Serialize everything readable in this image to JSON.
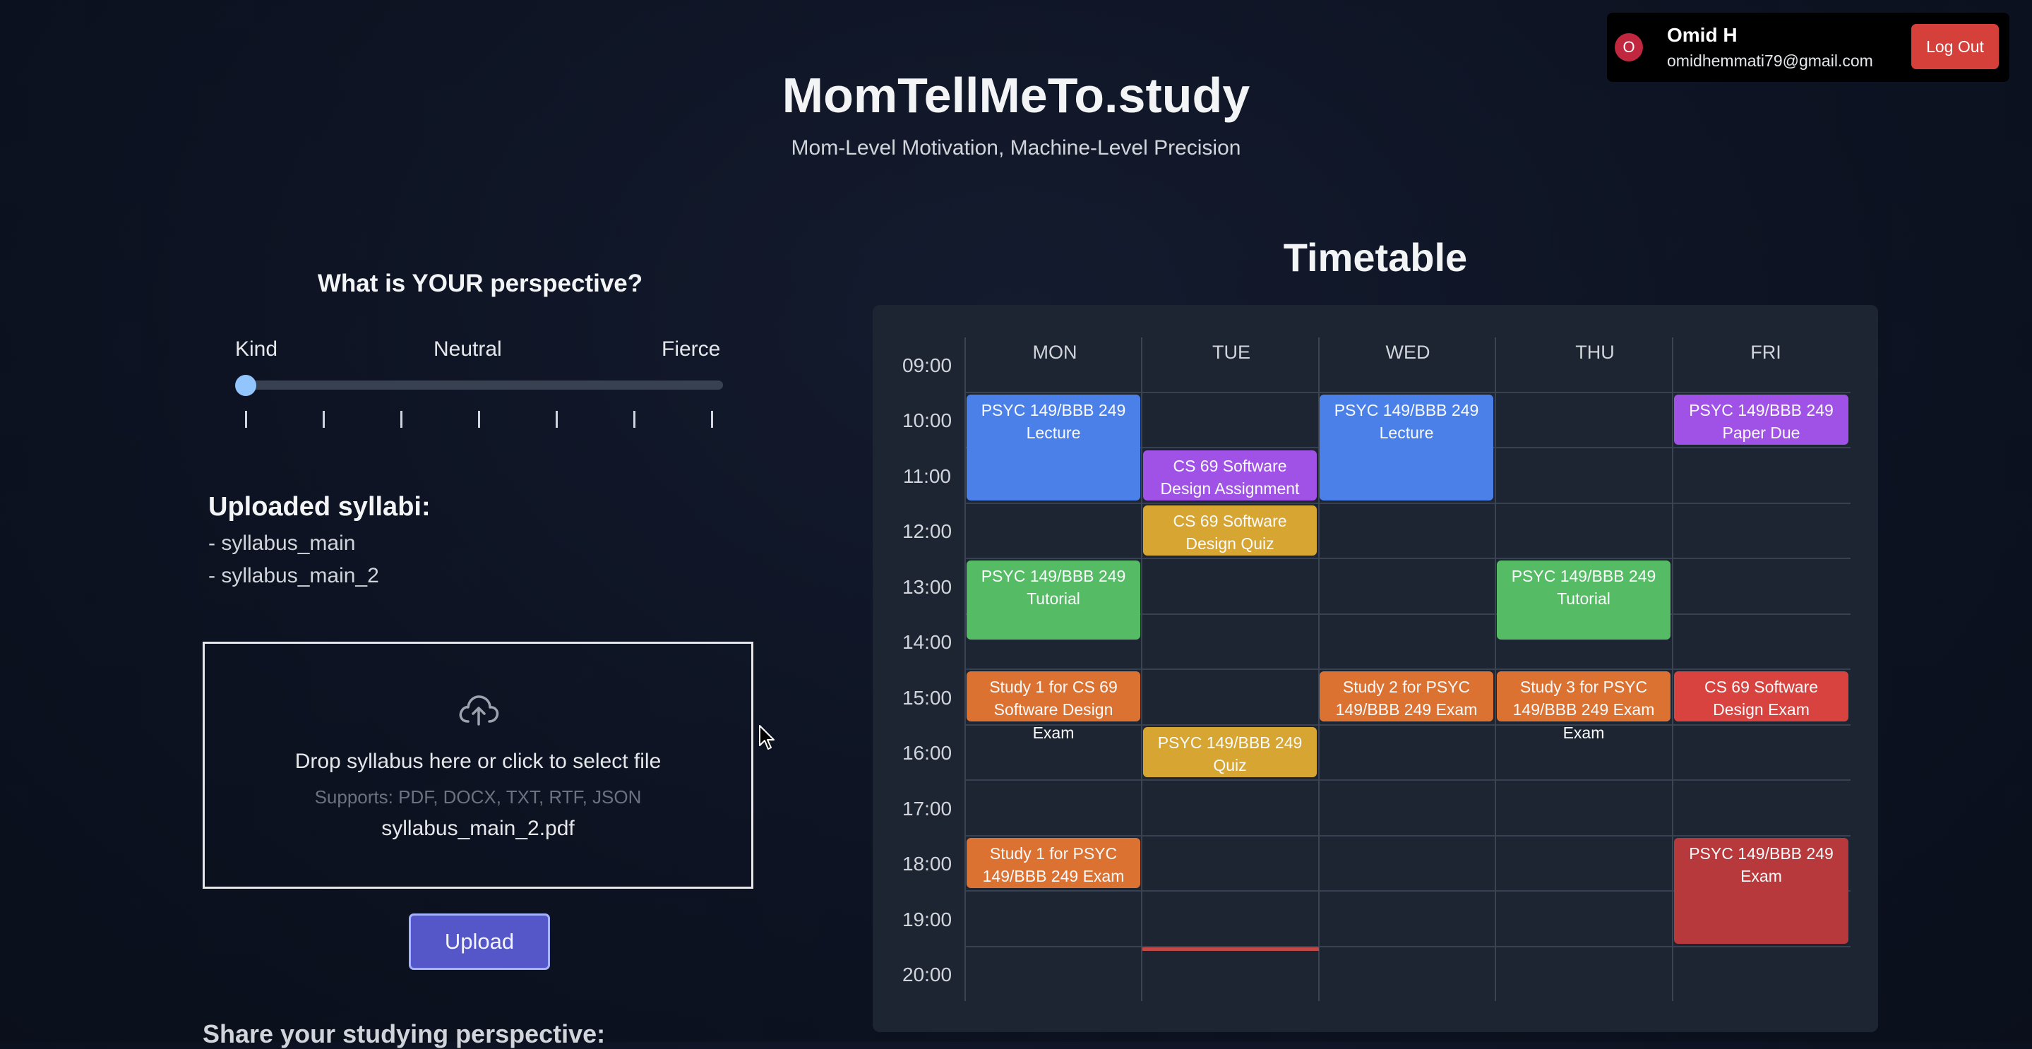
{
  "user": {
    "avatar_initial": "O",
    "name": "Omid H",
    "email": "omidhemmati79@gmail.com",
    "logout_label": "Log Out"
  },
  "header": {
    "title": "MomTellMeTo.study",
    "tagline": "Mom-Level Motivation, Machine-Level Precision"
  },
  "perspective": {
    "title": "What is YOUR perspective?",
    "labels": [
      "Kind",
      "Neutral",
      "Fierce"
    ],
    "value_fraction": 0,
    "tick_count": 7
  },
  "syllabi": {
    "title": "Uploaded syllabi:",
    "items": [
      "- syllabus_main",
      "- syllabus_main_2"
    ]
  },
  "dropzone": {
    "icon": "cloud-upload-icon",
    "text": "Drop syllabus here or click to select file",
    "supports": "Supports: PDF, DOCX, TXT, RTF, JSON",
    "selected_file": "syllabus_main_2.pdf"
  },
  "upload_label": "Upload",
  "share_title": "Share your studying perspective:",
  "timetable": {
    "title": "Timetable",
    "days": [
      "MON",
      "TUE",
      "WED",
      "THU",
      "FRI"
    ],
    "times": [
      "09:00",
      "10:00",
      "11:00",
      "12:00",
      "13:00",
      "14:00",
      "15:00",
      "16:00",
      "17:00",
      "18:00",
      "19:00",
      "20:00"
    ],
    "events": [
      {
        "day": 0,
        "start": "10:00",
        "end": "12:00",
        "lines": [
          "PSYC 149/BBB 249",
          "Lecture"
        ],
        "color": "#4b80e9"
      },
      {
        "day": 1,
        "start": "11:00",
        "end": "12:00",
        "lines": [
          "CS 69 Software",
          "Design Assignment"
        ],
        "color": "#a052e6"
      },
      {
        "day": 1,
        "start": "12:00",
        "end": "13:00",
        "lines": [
          "CS 69 Software",
          "Design Quiz"
        ],
        "color": "#d6a532"
      },
      {
        "day": 2,
        "start": "10:00",
        "end": "12:00",
        "lines": [
          "PSYC 149/BBB 249",
          "Lecture"
        ],
        "color": "#4b80e9"
      },
      {
        "day": 4,
        "start": "10:00",
        "end": "11:00",
        "lines": [
          "PSYC 149/BBB 249",
          "Paper Due"
        ],
        "color": "#a052e6"
      },
      {
        "day": 0,
        "start": "13:00",
        "end": "14:30",
        "lines": [
          "PSYC 149/BBB 249",
          "Tutorial"
        ],
        "color": "#55bb64"
      },
      {
        "day": 3,
        "start": "13:00",
        "end": "14:30",
        "lines": [
          "PSYC 149/BBB 249",
          "Tutorial"
        ],
        "color": "#55bb64"
      },
      {
        "day": 0,
        "start": "15:00",
        "end": "16:00",
        "lines": [
          "Study 1 for CS 69",
          "Software Design",
          "Exam"
        ],
        "color": "#dc7232"
      },
      {
        "day": 2,
        "start": "15:00",
        "end": "16:00",
        "lines": [
          "Study 2 for PSYC",
          "149/BBB 249 Exam"
        ],
        "color": "#dc7232"
      },
      {
        "day": 3,
        "start": "15:00",
        "end": "16:00",
        "lines": [
          "Study 3 for PSYC",
          "149/BBB 249 Exam",
          "Exam"
        ],
        "color": "#dc7232"
      },
      {
        "day": 4,
        "start": "15:00",
        "end": "16:00",
        "lines": [
          "CS 69 Software",
          "Design Exam"
        ],
        "color": "#d8433f"
      },
      {
        "day": 1,
        "start": "16:00",
        "end": "17:00",
        "lines": [
          "PSYC 149/BBB 249",
          "Quiz"
        ],
        "color": "#d6a532"
      },
      {
        "day": 0,
        "start": "18:00",
        "end": "19:00",
        "lines": [
          "Study 1 for PSYC",
          "149/BBB 249 Exam"
        ],
        "color": "#dc7232"
      },
      {
        "day": 4,
        "start": "18:00",
        "end": "20:00",
        "lines": [
          "PSYC 149/BBB 249",
          "Exam"
        ],
        "color": "#b8393b"
      }
    ]
  }
}
